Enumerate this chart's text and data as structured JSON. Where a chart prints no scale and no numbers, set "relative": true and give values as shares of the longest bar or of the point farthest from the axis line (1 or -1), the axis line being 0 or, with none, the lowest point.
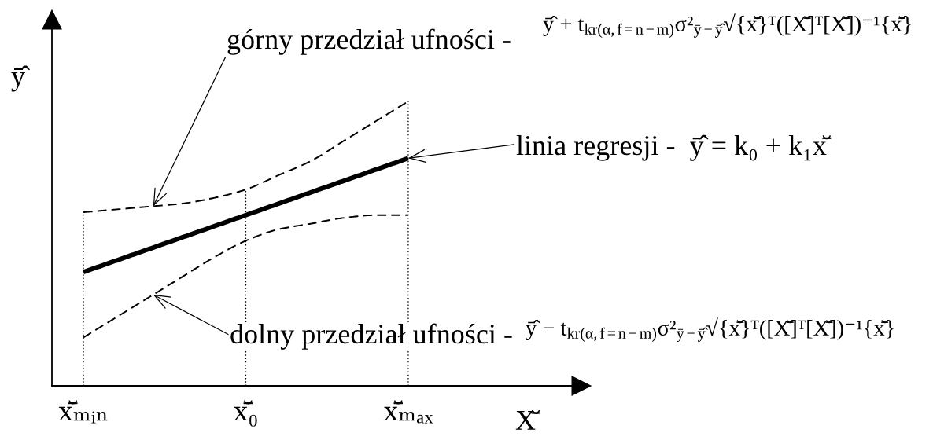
{
  "chart_data": {
    "type": "line",
    "relative": true,
    "xlabel": "X̆̄",
    "ylabel": "ȳ̂",
    "categories": [
      "x̆̄ₘᵢₙ",
      null,
      null,
      null,
      null,
      "x̆̄₀",
      null,
      null,
      null,
      null,
      "x̆̄ₘₐₓ"
    ],
    "tick_labels": "x",
    "grid": "x",
    "series": [
      {
        "color": "#000000",
        "line_style": "dashed",
        "values": [
          0.61,
          0.62,
          0.63,
          0.64,
          0.66,
          0.69,
          0.74,
          0.79,
          0.86,
          0.93,
          1.0
        ]
      },
      {
        "color": "#000000",
        "line_style": "solid",
        "values": [
          0.4,
          0.44,
          0.48,
          0.52,
          0.56,
          0.6,
          0.64,
          0.68,
          0.72,
          0.76,
          0.8
        ]
      },
      {
        "color": "#000000",
        "line_style": "dashed",
        "values": [
          0.17,
          0.24,
          0.31,
          0.38,
          0.45,
          0.51,
          0.55,
          0.57,
          0.59,
          0.6,
          0.6
        ]
      }
    ],
    "annotations": [
      "górny przedział ufności -",
      "ȳ̂ + t$_{kr(α,f=n−m)}$σ²$_{ȳ−ȳ̂}$√{x̆̄}ᵀ([X̆̄]ᵀ[X̆̄])⁻¹{x̆̄}",
      "linia regresji -  ȳ̂ = k₀ + k₁x̆̄",
      "dolny przedział ufności -",
      "ȳ̂ − t$_{kr(α,f=n−m)}$σ²$_{ȳ−ȳ̂}$√{x̆̄}ᵀ([X̆̄]ᵀ[X̆̄])⁻¹{x̆̄}"
    ]
  }
}
